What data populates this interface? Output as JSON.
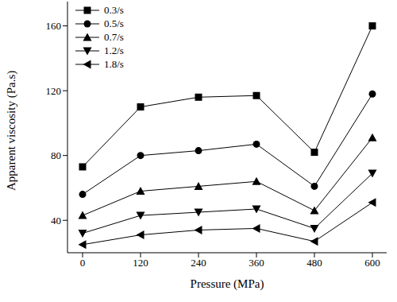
{
  "chart_data": {
    "type": "line",
    "x_label": "Pressure (MPa)",
    "y_label": "Apparent viscosity (Pa.s)",
    "categories": [
      "0",
      "120",
      "240",
      "360",
      "480",
      "600"
    ],
    "ylim": [
      20,
      175
    ],
    "yticks": [
      40,
      80,
      120,
      160
    ],
    "grid": false,
    "legend": "upper left",
    "series": [
      {
        "name": "0.3/s",
        "color": "#000000",
        "marker": "square",
        "values": [
          73,
          110,
          116,
          117,
          82,
          160
        ]
      },
      {
        "name": "0.5/s",
        "color": "#000000",
        "marker": "circle",
        "values": [
          56,
          80,
          83,
          87,
          61,
          118
        ]
      },
      {
        "name": "0.7/s",
        "color": "#000000",
        "marker": "triangle-up",
        "values": [
          43,
          58,
          61,
          64,
          46,
          91
        ]
      },
      {
        "name": "1.2/s",
        "color": "#000000",
        "marker": "triangle-down",
        "values": [
          32,
          43,
          45,
          47,
          35,
          69
        ]
      },
      {
        "name": "1.8/s",
        "color": "#000000",
        "marker": "triangle-left",
        "values": [
          25,
          31,
          34,
          35,
          27,
          51
        ]
      }
    ]
  }
}
